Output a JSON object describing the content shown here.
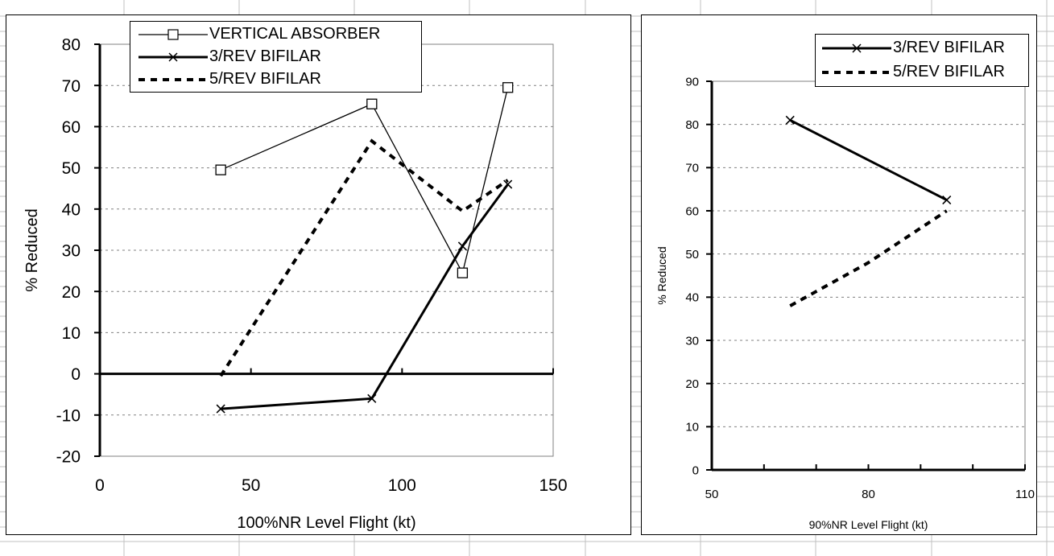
{
  "colors": {
    "line": "#000000",
    "grid": "#808080",
    "plot_border": "#808080",
    "sheet_grid": "#c0c0c0"
  },
  "chart_data": [
    {
      "type": "line",
      "title": "",
      "xlabel": "100%NR Level Flight (kt)",
      "ylabel": "% Reduced",
      "xlim": [
        0,
        150
      ],
      "ylim": [
        -20,
        80
      ],
      "xticks": [
        0,
        50,
        100,
        150
      ],
      "yticks": [
        -20,
        -10,
        0,
        10,
        20,
        30,
        40,
        50,
        60,
        70,
        80
      ],
      "grid": "horizontal dotted",
      "legend_position": "top-left",
      "series": [
        {
          "name": "VERTICAL ABSORBER",
          "style": "thin solid, square markers",
          "x": [
            40,
            90,
            120,
            135
          ],
          "y": [
            49.5,
            65.5,
            24.5,
            69.5
          ]
        },
        {
          "name": "3/REV BIFILAR",
          "style": "thick solid, x markers",
          "x": [
            40,
            90,
            120,
            135
          ],
          "y": [
            -8.5,
            -6,
            31,
            46
          ]
        },
        {
          "name": "5/REV BIFILAR",
          "style": "thick dashed",
          "x": [
            40,
            90,
            120,
            135
          ],
          "y": [
            -0.5,
            56.5,
            39.5,
            47
          ]
        }
      ]
    },
    {
      "type": "line",
      "title": "",
      "xlabel": "90%NR Level Flight (kt)",
      "ylabel": "% Reduced",
      "xlim": [
        50,
        110
      ],
      "ylim": [
        0,
        90
      ],
      "xticks": [
        50,
        80,
        110
      ],
      "yticks": [
        0,
        10,
        20,
        30,
        40,
        50,
        60,
        70,
        80,
        90
      ],
      "grid": "horizontal dotted",
      "legend_position": "top-right",
      "series": [
        {
          "name": "3/REV BIFILAR",
          "style": "thick solid, x markers",
          "x": [
            65,
            95
          ],
          "y": [
            81,
            62.5
          ]
        },
        {
          "name": "5/REV BIFILAR",
          "style": "thick dashed",
          "x": [
            65,
            80,
            95
          ],
          "y": [
            38,
            48,
            60
          ]
        }
      ]
    }
  ]
}
